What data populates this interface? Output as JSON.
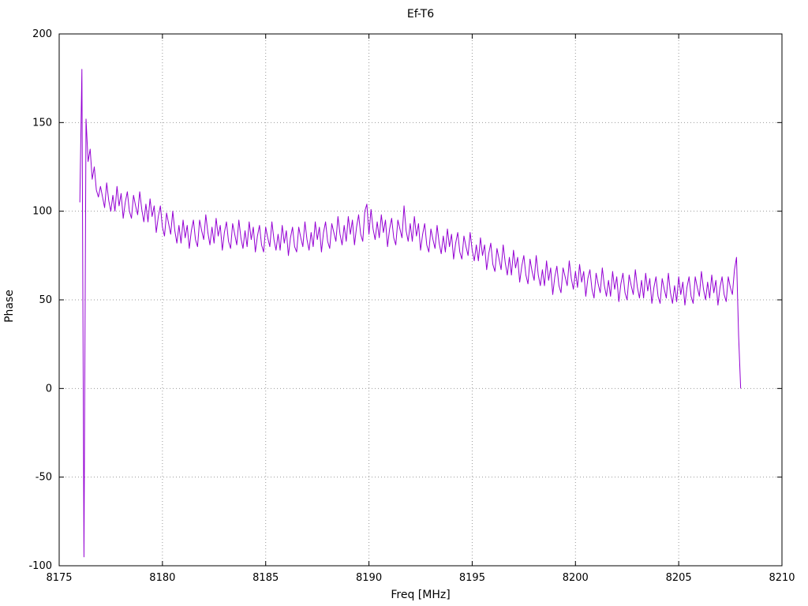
{
  "page": {
    "background": "#ffffff"
  },
  "chart_data": {
    "type": "line",
    "title": "Ef-T6",
    "xlabel": "Freq [MHz]",
    "ylabel": "Phase",
    "xlim": [
      8175,
      8210
    ],
    "ylim": [
      -100,
      200
    ],
    "xticks": [
      8175,
      8180,
      8185,
      8190,
      8195,
      8200,
      8205,
      8210
    ],
    "yticks": [
      -100,
      -50,
      0,
      50,
      100,
      150,
      200
    ],
    "grid": true,
    "legend": "none",
    "line_color": "#9400d3",
    "grid_color": "#999999",
    "axis_color": "#000000",
    "series": [
      {
        "name": "Ef-T6 phase",
        "x_start": 8176.0,
        "x_step": 0.1,
        "y": [
          105,
          180,
          -95,
          152,
          128,
          135,
          118,
          125,
          112,
          108,
          114,
          108,
          102,
          116,
          106,
          100,
          109,
          100,
          114,
          103,
          110,
          96,
          105,
          111,
          100,
          96,
          109,
          103,
          98,
          111,
          101,
          94,
          104,
          94,
          107,
          97,
          103,
          88,
          97,
          103,
          91,
          86,
          99,
          93,
          87,
          100,
          89,
          82,
          92,
          82,
          95,
          85,
          92,
          79,
          89,
          95,
          84,
          80,
          95,
          89,
          84,
          98,
          88,
          81,
          91,
          82,
          96,
          86,
          92,
          78,
          88,
          94,
          83,
          79,
          93,
          87,
          81,
          95,
          85,
          79,
          89,
          80,
          94,
          84,
          91,
          77,
          86,
          92,
          81,
          77,
          91,
          85,
          80,
          94,
          84,
          78,
          87,
          78,
          92,
          82,
          89,
          75,
          85,
          91,
          80,
          77,
          91,
          85,
          80,
          94,
          84,
          78,
          88,
          80,
          94,
          84,
          91,
          77,
          88,
          94,
          83,
          79,
          93,
          88,
          83,
          97,
          87,
          81,
          92,
          83,
          97,
          87,
          95,
          81,
          91,
          98,
          87,
          83,
          100,
          104,
          87,
          101,
          90,
          84,
          94,
          85,
          98,
          88,
          95,
          80,
          90,
          96,
          85,
          81,
          95,
          90,
          85,
          103,
          89,
          83,
          93,
          83,
          97,
          86,
          93,
          78,
          87,
          93,
          81,
          77,
          90,
          84,
          79,
          92,
          82,
          76,
          86,
          77,
          90,
          80,
          87,
          73,
          82,
          88,
          77,
          73,
          86,
          80,
          75,
          88,
          78,
          72,
          81,
          72,
          85,
          75,
          81,
          67,
          76,
          82,
          70,
          66,
          79,
          73,
          67,
          81,
          71,
          64,
          74,
          64,
          78,
          68,
          74,
          60,
          69,
          75,
          64,
          59,
          73,
          66,
          61,
          75,
          64,
          58,
          67,
          58,
          72,
          61,
          68,
          53,
          63,
          69,
          58,
          54,
          68,
          63,
          58,
          72,
          62,
          56,
          66,
          57,
          70,
          60,
          66,
          52,
          62,
          67,
          56,
          51,
          65,
          59,
          54,
          68,
          58,
          52,
          61,
          52,
          66,
          56,
          63,
          49,
          59,
          65,
          54,
          50,
          64,
          58,
          53,
          67,
          57,
          51,
          61,
          51,
          65,
          55,
          62,
          48,
          57,
          63,
          52,
          48,
          62,
          56,
          51,
          65,
          54,
          48,
          58,
          49,
          63,
          53,
          60,
          47,
          57,
          63,
          52,
          48,
          63,
          57,
          52,
          66,
          56,
          50,
          60,
          51,
          64,
          54,
          61,
          47,
          57,
          63,
          53,
          49,
          63,
          57,
          53,
          67,
          74,
          30,
          0
        ]
      }
    ]
  }
}
